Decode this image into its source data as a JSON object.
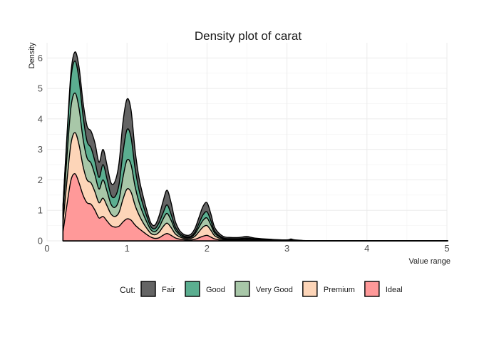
{
  "chart_data": {
    "type": "area",
    "stacked": true,
    "title": "Density plot of carat",
    "xlabel": "Value range",
    "ylabel": "Density",
    "xlim": [
      0,
      5
    ],
    "ylim": [
      0,
      6.5
    ],
    "x_ticks": [
      0,
      1,
      2,
      3,
      4,
      5
    ],
    "y_ticks": [
      0,
      1,
      2,
      3,
      4,
      5,
      6
    ],
    "grid": true,
    "legend": {
      "title": "Cut:",
      "position": "bottom",
      "entries": [
        "Fair",
        "Good",
        "Very Good",
        "Premium",
        "Ideal"
      ]
    },
    "x": [
      0.2,
      0.25,
      0.3,
      0.35,
      0.4,
      0.45,
      0.5,
      0.55,
      0.6,
      0.65,
      0.7,
      0.75,
      0.8,
      0.85,
      0.9,
      0.95,
      1.0,
      1.05,
      1.1,
      1.15,
      1.2,
      1.25,
      1.3,
      1.35,
      1.4,
      1.45,
      1.5,
      1.55,
      1.6,
      1.65,
      1.7,
      1.75,
      1.8,
      1.85,
      1.9,
      1.95,
      2.0,
      2.05,
      2.1,
      2.2,
      2.3,
      2.4,
      2.5,
      2.6,
      2.8,
      3.0,
      3.05,
      3.1,
      3.3,
      3.6,
      4.0,
      4.5,
      5.01
    ],
    "series": [
      {
        "name": "Ideal",
        "color": "#FF9999",
        "values": [
          0.3,
          1.2,
          2.0,
          2.2,
          1.9,
          1.5,
          1.25,
          1.2,
          1.0,
          0.75,
          0.8,
          0.65,
          0.5,
          0.45,
          0.48,
          0.62,
          0.72,
          0.68,
          0.52,
          0.4,
          0.3,
          0.2,
          0.12,
          0.08,
          0.1,
          0.18,
          0.24,
          0.18,
          0.1,
          0.06,
          0.04,
          0.03,
          0.03,
          0.05,
          0.1,
          0.15,
          0.18,
          0.12,
          0.06,
          0.02,
          0.01,
          0.01,
          0.02,
          0.01,
          0.005,
          0.005,
          0.01,
          0.005,
          0.0,
          0.0,
          0.0,
          0.0,
          0.0
        ]
      },
      {
        "name": "Premium",
        "color": "#FDD5B8",
        "values": [
          0.3,
          0.8,
          1.2,
          1.35,
          1.25,
          0.95,
          0.75,
          0.7,
          0.6,
          0.5,
          0.6,
          0.5,
          0.38,
          0.35,
          0.45,
          0.75,
          0.98,
          0.92,
          0.65,
          0.45,
          0.3,
          0.2,
          0.12,
          0.12,
          0.18,
          0.28,
          0.34,
          0.26,
          0.14,
          0.08,
          0.05,
          0.04,
          0.05,
          0.1,
          0.2,
          0.3,
          0.32,
          0.22,
          0.1,
          0.03,
          0.02,
          0.02,
          0.03,
          0.02,
          0.01,
          0.005,
          0.01,
          0.005,
          0.0,
          0.0,
          0.0,
          0.0,
          0.0
        ]
      },
      {
        "name": "Very Good",
        "color": "#A8C7A8",
        "values": [
          0.3,
          0.8,
          1.2,
          1.3,
          1.2,
          0.9,
          0.72,
          0.65,
          0.55,
          0.45,
          0.6,
          0.48,
          0.32,
          0.3,
          0.42,
          0.72,
          0.95,
          0.9,
          0.62,
          0.42,
          0.3,
          0.2,
          0.12,
          0.1,
          0.16,
          0.25,
          0.32,
          0.24,
          0.13,
          0.07,
          0.04,
          0.03,
          0.04,
          0.08,
          0.15,
          0.22,
          0.25,
          0.17,
          0.08,
          0.03,
          0.02,
          0.02,
          0.02,
          0.02,
          0.01,
          0.005,
          0.01,
          0.005,
          0.0,
          0.0,
          0.0,
          0.0,
          0.0
        ]
      },
      {
        "name": "Good",
        "color": "#5BAE90",
        "values": [
          0.25,
          0.6,
          0.95,
          1.05,
          0.95,
          0.75,
          0.55,
          0.5,
          0.45,
          0.38,
          0.5,
          0.4,
          0.3,
          0.35,
          0.5,
          0.82,
          1.0,
          0.9,
          0.6,
          0.4,
          0.28,
          0.18,
          0.1,
          0.1,
          0.15,
          0.2,
          0.28,
          0.2,
          0.1,
          0.06,
          0.04,
          0.03,
          0.03,
          0.06,
          0.12,
          0.18,
          0.2,
          0.14,
          0.06,
          0.02,
          0.02,
          0.02,
          0.02,
          0.01,
          0.005,
          0.005,
          0.01,
          0.005,
          0.0,
          0.0,
          0.0,
          0.0,
          0.0
        ]
      },
      {
        "name": "Fair",
        "color": "#646464",
        "values": [
          0.05,
          0.1,
          0.2,
          0.3,
          0.4,
          0.45,
          0.5,
          0.55,
          0.6,
          0.5,
          0.5,
          0.45,
          0.4,
          0.5,
          0.7,
          1.0,
          1.0,
          0.9,
          0.6,
          0.4,
          0.3,
          0.2,
          0.12,
          0.12,
          0.22,
          0.38,
          0.48,
          0.38,
          0.2,
          0.1,
          0.06,
          0.05,
          0.07,
          0.12,
          0.2,
          0.28,
          0.3,
          0.22,
          0.12,
          0.05,
          0.04,
          0.04,
          0.05,
          0.03,
          0.02,
          0.01,
          0.02,
          0.01,
          0.0,
          0.0,
          0.0,
          0.0,
          0.0
        ]
      }
    ]
  }
}
